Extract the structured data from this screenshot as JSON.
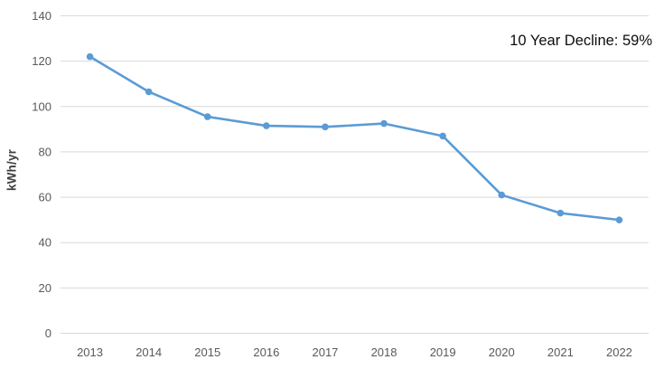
{
  "chart_data": {
    "type": "line",
    "title": "",
    "annotation": "10 Year Decline: 59%",
    "xlabel": "",
    "ylabel": "kWh/yr",
    "categories": [
      "2013",
      "2014",
      "2015",
      "2016",
      "2017",
      "2018",
      "2019",
      "2020",
      "2021",
      "2022"
    ],
    "values": [
      122,
      106.5,
      95.5,
      91.5,
      91,
      92.5,
      87,
      61,
      53,
      50
    ],
    "ylim": [
      0,
      140
    ],
    "ytick_interval": 20,
    "grid": true,
    "legend": false,
    "colors": {
      "line": "#5B9BD5",
      "marker": "#5B9BD5",
      "gridline": "#D9D9D9",
      "tick_label": "#595959",
      "axis_title": "#3F3F3F",
      "annotation": "#0D0D0D",
      "background": "#FFFFFF"
    }
  }
}
